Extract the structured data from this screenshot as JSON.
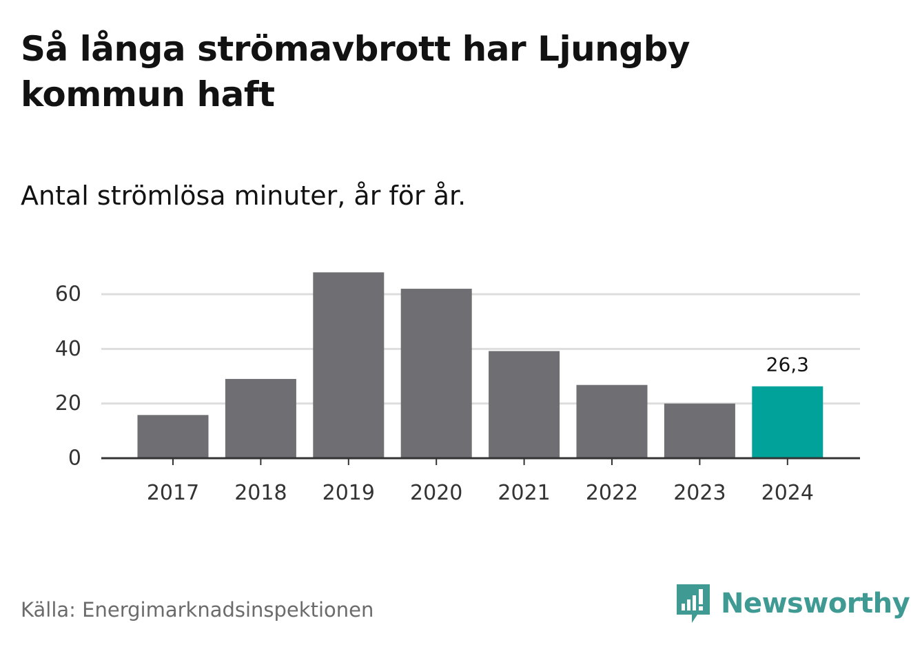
{
  "title": "Så långa strömavbrott har Ljungby kommun haft",
  "subtitle": "Antal strömlösa minuter, år för år.",
  "source": "Källa: Energimarknadsinspektionen",
  "brand": {
    "name": "Newsworthy",
    "color": "#3f9a94"
  },
  "colors": {
    "bar_default": "#6e6e73",
    "bar_highlight": "#00a29a",
    "grid": "#dddddd",
    "axis": "#333333",
    "tick_text": "#333333"
  },
  "chart_data": {
    "type": "bar",
    "categories": [
      "2017",
      "2018",
      "2019",
      "2020",
      "2021",
      "2022",
      "2023",
      "2024"
    ],
    "values": [
      15.8,
      29.0,
      68.0,
      62.0,
      39.2,
      26.8,
      20.0,
      26.3
    ],
    "highlight_index": 7,
    "data_labels": [
      {
        "index": 7,
        "text": "26,3"
      }
    ],
    "ylim": [
      0,
      70
    ],
    "yticks": [
      0,
      20,
      40,
      60
    ],
    "ytick_labels": [
      "0",
      "20",
      "40",
      "60"
    ],
    "grid": true,
    "xlabel": "",
    "ylabel": ""
  }
}
